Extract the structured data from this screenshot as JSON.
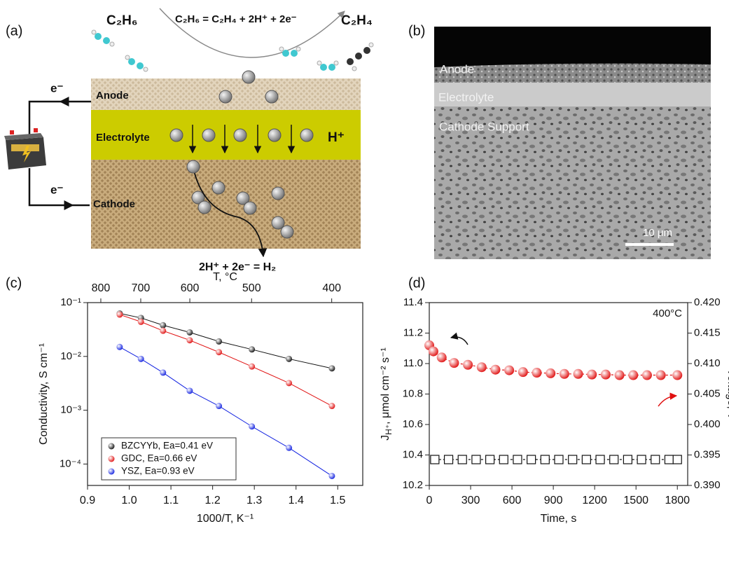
{
  "diagram": {
    "label": "(a)",
    "reactant": "C₂H₆",
    "reaction": "C₂H₆ = C₂H₄ + 2H⁺ + 2e⁻",
    "product": "C₂H₄",
    "layers": [
      "Anode",
      "Electrolyte",
      "Cathode"
    ],
    "ion": "H⁺",
    "electron_top": "e⁻",
    "electron_bottom": "e⁻",
    "cathode_reaction": "2H⁺ + 2e⁻ = H₂"
  },
  "micrograph": {
    "label": "(b)",
    "regions": [
      "Anode",
      "Electrolyte",
      "Cathode Support"
    ],
    "scale_bar": "10 μm"
  },
  "chart_data": [
    {
      "type": "line",
      "panel_label": "(c)",
      "x_label": "1000/T, K⁻¹",
      "y_label": "Conductivity, S cm⁻¹",
      "x2_label": "T, °C",
      "x": [
        0.977,
        1.028,
        1.081,
        1.145,
        1.215,
        1.294,
        1.383,
        1.486
      ],
      "series": [
        {
          "name": "BZCYYb, Ea=0.41 eV",
          "color": "#111111",
          "values": [
            0.063,
            0.052,
            0.038,
            0.028,
            0.019,
            0.0135,
            0.009,
            0.006
          ]
        },
        {
          "name": "GDC, Ea=0.66 eV",
          "color": "#e01010",
          "values": [
            0.06,
            0.044,
            0.03,
            0.02,
            0.012,
            0.0065,
            0.0032,
            0.0012
          ]
        },
        {
          "name": "YSZ, Ea=0.93 eV",
          "color": "#1020e0",
          "values": [
            0.015,
            0.009,
            0.005,
            0.0023,
            0.0012,
            0.0005,
            0.0002,
            6e-05
          ]
        }
      ],
      "xlim": [
        0.9,
        1.56
      ],
      "xticks": [
        0.9,
        {
          "value": 1.0,
          "label": "1.0"
        },
        1.1,
        1.2,
        1.3,
        1.4,
        1.5
      ],
      "x2ticks": [
        800,
        700,
        600,
        500,
        400
      ],
      "ylim": [
        4e-05,
        0.1
      ],
      "log_y": true,
      "yticks": [
        {
          "value": 0.1,
          "label": "10⁻¹"
        },
        {
          "value": 0.01,
          "label": "10⁻²"
        },
        {
          "value": 0.001,
          "label": "10⁻³"
        },
        {
          "value": 0.0001,
          "label": "10⁻⁴"
        }
      ],
      "legend": "lower left"
    },
    {
      "type": "scatter",
      "panel_label": "(d)",
      "x_label": "Time, s",
      "y_label": [
        "J",
        "H⁺",
        ", μmol cm⁻² s⁻¹"
      ],
      "y2_label": "Voltage, V",
      "annotation": "400°C",
      "series": [
        {
          "color": "#e01010",
          "axis": "y2",
          "marker": "circle",
          "x": [
            0,
            30,
            90,
            180,
            280,
            380,
            480,
            580,
            680,
            780,
            880,
            980,
            1080,
            1180,
            1280,
            1380,
            1480,
            1580,
            1680,
            1800
          ],
          "values": [
            0.413,
            0.412,
            0.411,
            0.4101,
            0.4098,
            0.4094,
            0.409,
            0.4089,
            0.4086,
            0.4085,
            0.4084,
            0.4083,
            0.4083,
            0.4082,
            0.4082,
            0.4081,
            0.4081,
            0.4081,
            0.4081,
            0.4081
          ]
        },
        {
          "color": "#111111",
          "marker": "square",
          "hollow": true,
          "x": [
            40,
            140,
            240,
            340,
            440,
            540,
            640,
            740,
            840,
            940,
            1040,
            1140,
            1240,
            1340,
            1440,
            1540,
            1640,
            1740,
            1800
          ],
          "values": [
            10.37,
            10.37,
            10.37,
            10.37,
            10.37,
            10.37,
            10.37,
            10.37,
            10.37,
            10.37,
            10.37,
            10.37,
            10.37,
            10.37,
            10.37,
            10.37,
            10.37,
            10.37,
            10.37
          ]
        }
      ],
      "xlim": [
        0,
        1875
      ],
      "xticks": [
        0,
        300,
        600,
        900,
        1200,
        1500,
        1800
      ],
      "ylim": [
        10.2,
        11.4
      ],
      "yticks": [
        10.2,
        10.4,
        10.6,
        10.8,
        {
          "value": 11.0,
          "label": "11.0"
        },
        11.2,
        11.4
      ],
      "y2lim": [
        0.39,
        0.42
      ],
      "y2ticks": [
        {
          "value": 0.39,
          "label": "0.390"
        },
        0.395,
        {
          "value": 0.4,
          "label": "0.400"
        },
        0.405,
        {
          "value": 0.41,
          "label": "0.410"
        },
        0.415,
        {
          "value": 0.42,
          "label": "0.420"
        }
      ]
    }
  ]
}
